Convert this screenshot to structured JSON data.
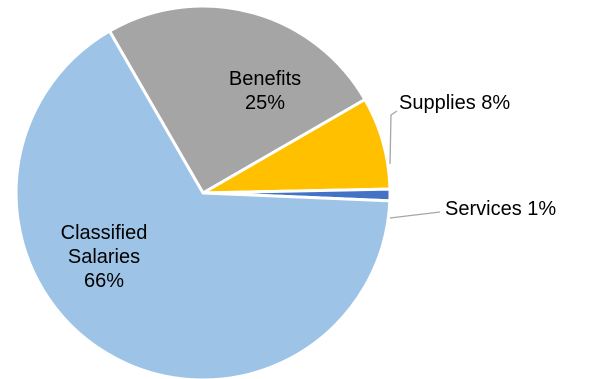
{
  "chart_data": {
    "type": "pie",
    "series": [
      {
        "name": "Benefits",
        "value": 25,
        "label": "25%",
        "color": "#a5a5a5",
        "label_lines": [
          "Benefits",
          "25%"
        ]
      },
      {
        "name": "Supplies",
        "value": 8,
        "label": "8%",
        "color": "#ffc000",
        "label_lines": [
          "Supplies 8%"
        ]
      },
      {
        "name": "Services",
        "value": 1,
        "label": "1%",
        "color": "#4472c4",
        "label_lines": [
          "Services 1%"
        ]
      },
      {
        "name": "Classified Salaries",
        "value": 66,
        "label": "66%",
        "color": "#9dc3e6",
        "label_lines": [
          "Classified",
          "Salaries",
          "66%"
        ]
      }
    ],
    "legend": "none",
    "data_labels": "category name and percentage"
  }
}
